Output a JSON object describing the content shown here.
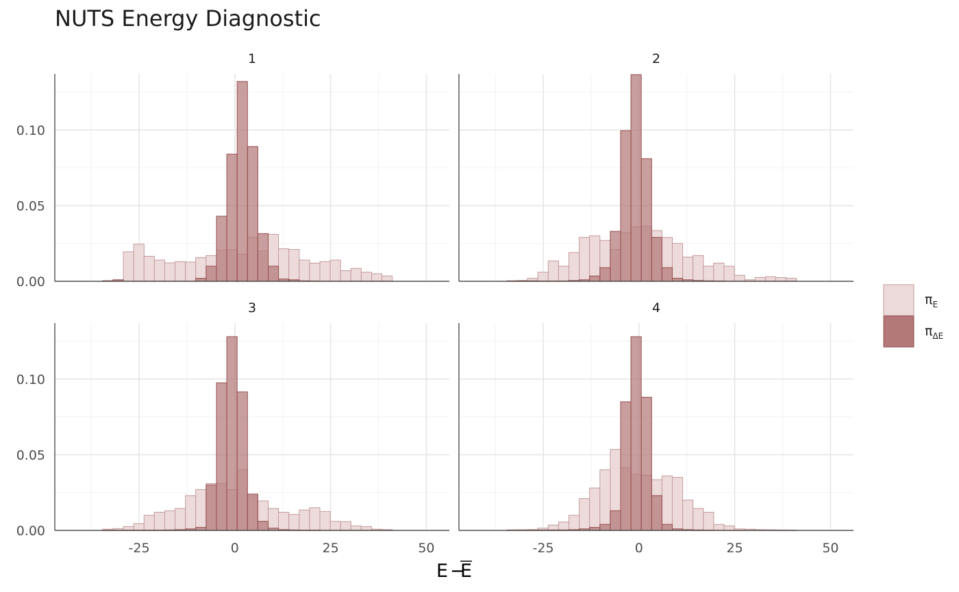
{
  "chart_data": {
    "type": "bar",
    "title": "NUTS Energy Diagnostic",
    "xlabel_main": "E",
    "xlabel_op": "−",
    "xlabel_bar": "E",
    "ylabel": "",
    "xlim": [
      -47,
      56
    ],
    "ylim": [
      0,
      0.137
    ],
    "x_ticks": [
      -25,
      0,
      25,
      50
    ],
    "x_tick_labels": [
      "-25",
      "0",
      "25",
      "50"
    ],
    "y_ticks": [
      0,
      0.05,
      0.1
    ],
    "y_tick_labels": [
      "0.00",
      "0.05",
      "0.10"
    ],
    "bin_edges": [
      -34.5,
      -31.8,
      -29.1,
      -26.4,
      -23.7,
      -21.0,
      -18.3,
      -15.6,
      -12.9,
      -10.2,
      -7.5,
      -4.8,
      -2.1,
      0.6,
      3.3,
      6.0,
      8.7,
      11.4,
      14.1,
      16.8,
      19.5,
      22.2,
      24.9,
      27.6,
      30.3,
      33.0,
      35.7,
      38.4,
      41.1
    ],
    "grid": true,
    "legend_placement": "right",
    "legend": [
      {
        "symbol": "π",
        "subscript": "E"
      },
      {
        "symbol": "π",
        "subscript": "ΔE"
      }
    ],
    "colors": {
      "pi_E_fill": "#eddbdb",
      "pi_E_stroke": "#c49a9a",
      "pi_dE_fill": "#b37979",
      "pi_dE_stroke": "#964e4e",
      "axis": "#333333",
      "grid_major": "#e6e6e6",
      "grid_minor": "#f2f2f2",
      "tick_text": "#4d4d4d"
    },
    "panels": [
      {
        "label": "1",
        "series": [
          {
            "name": "π_E",
            "values": [
              0.0004,
              0.0006,
              0.0195,
              0.0245,
              0.0165,
              0.014,
              0.0122,
              0.013,
              0.0127,
              0.0157,
              0.017,
              0.0207,
              0.021,
              0.018,
              0.029,
              0.02,
              0.031,
              0.0215,
              0.021,
              0.014,
              0.012,
              0.013,
              0.014,
              0.007,
              0.0085,
              0.006,
              0.005,
              0.0035,
              0.002
            ]
          },
          {
            "name": "π_ΔE",
            "values": [
              0.0003,
              0.001,
              0.0001,
              0.0001,
              0.0001,
              0.0001,
              0.0001,
              0.0001,
              0.0001,
              0.002,
              0.01,
              0.043,
              0.084,
              0.132,
              0.089,
              0.0315,
              0.01,
              0.0015,
              0.001,
              0.0003,
              0.0002,
              0.0001,
              0.0001,
              0.0001,
              0.0001,
              0.0001,
              0.0001,
              0.0001,
              0.0003
            ]
          }
        ]
      },
      {
        "label": "2",
        "series": [
          {
            "name": "π_E",
            "values": [
              0.0002,
              0.0005,
              0.002,
              0.006,
              0.0135,
              0.01,
              0.019,
              0.029,
              0.03,
              0.027,
              0.021,
              0.032,
              0.036,
              0.0365,
              0.0335,
              0.029,
              0.025,
              0.016,
              0.017,
              0.01,
              0.012,
              0.01,
              0.004,
              0.001,
              0.0025,
              0.003,
              0.0025,
              0.002,
              0.0025
            ]
          },
          {
            "name": "π_ΔE",
            "values": [
              0.0003,
              0.0003,
              0.0003,
              0.0002,
              0.0002,
              0.0002,
              0.0005,
              0.001,
              0.0035,
              0.009,
              0.033,
              0.0995,
              0.1365,
              0.081,
              0.029,
              0.009,
              0.002,
              0.001,
              0.0005,
              0.0003,
              0.0002,
              0.0001,
              0.0001,
              0.0001,
              0.0001,
              0.0001,
              0.0001,
              0.0001,
              0.0001
            ]
          }
        ]
      },
      {
        "label": "3",
        "series": [
          {
            "name": "π_E",
            "values": [
              0.0008,
              0.0012,
              0.0025,
              0.0045,
              0.01,
              0.012,
              0.013,
              0.0145,
              0.023,
              0.027,
              0.031,
              0.031,
              0.027,
              0.04,
              0.023,
              0.0195,
              0.0145,
              0.012,
              0.0105,
              0.0135,
              0.015,
              0.0125,
              0.006,
              0.0058,
              0.003,
              0.0025,
              0.0008,
              0.0005,
              0.0003
            ]
          },
          {
            "name": "π_ΔE",
            "values": [
              0.0002,
              0.0002,
              0.0002,
              0.0002,
              0.0002,
              0.0002,
              0.0003,
              0.0005,
              0.001,
              0.002,
              0.03,
              0.0975,
              0.128,
              0.0915,
              0.024,
              0.006,
              0.0015,
              0.0005,
              0.0003,
              0.0002,
              0.0002,
              0.0001,
              0.0001,
              0.0001,
              0.0001,
              0.0001,
              0.0001,
              0.0001,
              0.0001
            ]
          }
        ]
      },
      {
        "label": "4",
        "series": [
          {
            "name": "π_E",
            "values": [
              0.0002,
              0.0003,
              0.0005,
              0.0015,
              0.0035,
              0.0055,
              0.01,
              0.021,
              0.028,
              0.04,
              0.0535,
              0.0415,
              0.037,
              0.0365,
              0.0335,
              0.036,
              0.035,
              0.02,
              0.0145,
              0.012,
              0.004,
              0.003,
              0.001,
              0.0008,
              0.0005,
              0.0004,
              0.0003,
              0.0002,
              0.0002
            ]
          },
          {
            "name": "π_ΔE",
            "values": [
              0.0003,
              0.0003,
              0.0003,
              0.0003,
              0.0003,
              0.0003,
              0.0005,
              0.001,
              0.002,
              0.004,
              0.013,
              0.085,
              0.128,
              0.088,
              0.023,
              0.004,
              0.001,
              0.0005,
              0.0003,
              0.0002,
              0.0001,
              0.0001,
              0.0001,
              0.0001,
              0.0001,
              0.0001,
              0.0001,
              0.0001,
              0.0001
            ]
          }
        ]
      }
    ]
  }
}
